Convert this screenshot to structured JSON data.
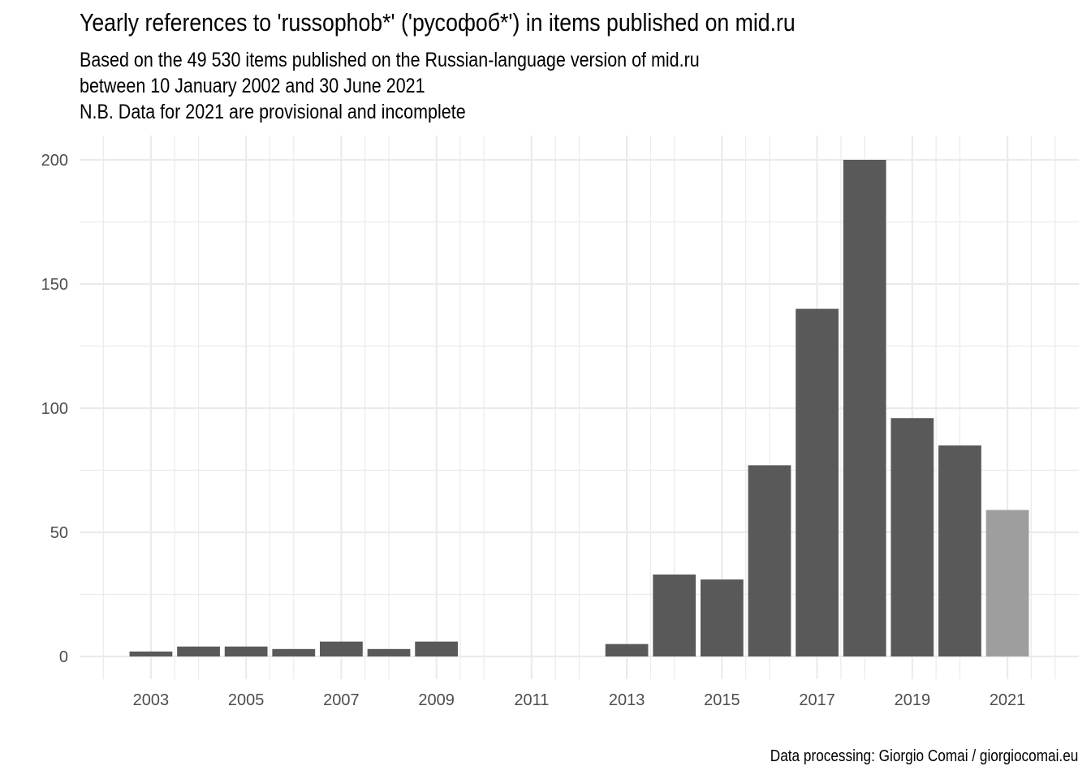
{
  "chart_data": {
    "type": "bar",
    "title": "Yearly references to 'russophob*' ('русофоб*') in items published on mid.ru",
    "subtitle": [
      "Based on the  49 530 items published on the Russian-language version of mid.ru",
      "between 10 January 2002 and 30 June 2021",
      "N.B. Data for 2021 are provisional and incomplete"
    ],
    "caption": "Data processing: Giorgio Comai / giorgiocomai.eu",
    "xlabel": "",
    "ylabel": "",
    "categories": [
      2003,
      2004,
      2005,
      2006,
      2007,
      2008,
      2009,
      2010,
      2011,
      2012,
      2013,
      2014,
      2015,
      2016,
      2017,
      2018,
      2019,
      2020,
      2021
    ],
    "values": [
      2,
      4,
      4,
      3,
      6,
      3,
      6,
      0,
      0,
      0,
      5,
      33,
      31,
      77,
      140,
      200,
      96,
      85,
      59
    ],
    "provisional": [
      2021
    ],
    "x_ticks": [
      "2003",
      "2005",
      "2007",
      "2009",
      "2011",
      "2013",
      "2015",
      "2017",
      "2019",
      "2021"
    ],
    "y_ticks": [
      "0",
      "50",
      "100",
      "150",
      "200"
    ],
    "ylim": [
      0,
      200
    ],
    "xlim": [
      2001.5,
      2022.5
    ],
    "grid": true,
    "legend": "none",
    "bar_color": "#595959",
    "provisional_color": "#9e9e9e",
    "grid_color": "#ebebeb"
  }
}
